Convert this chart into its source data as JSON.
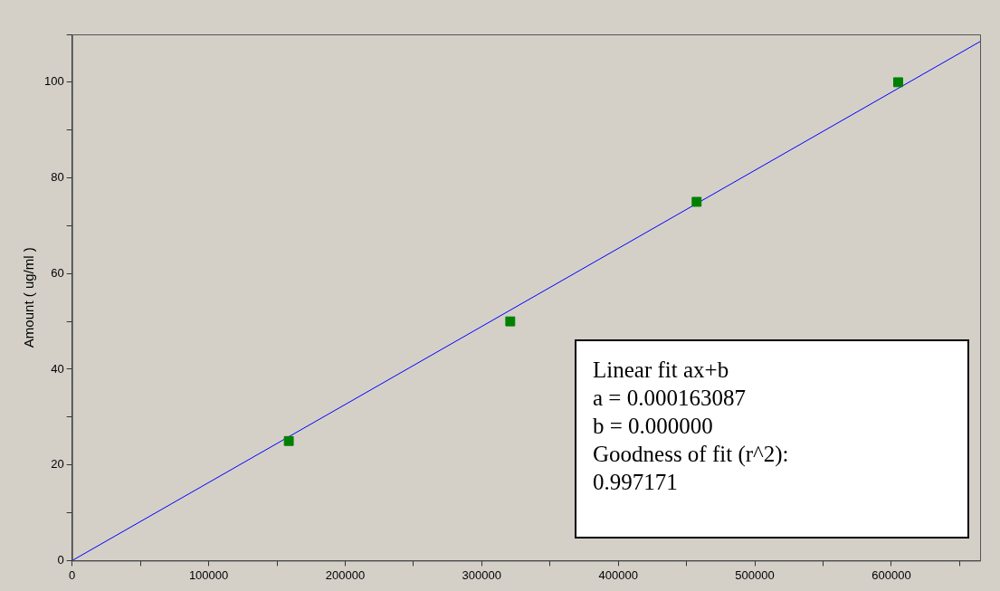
{
  "chart_data": {
    "type": "scatter",
    "ylabel": "Amount ( ug/ml )",
    "x": [
      158700,
      320900,
      457400,
      605000
    ],
    "series": [
      {
        "type": "scatter",
        "color": "#008000",
        "marker": "square",
        "values": [
          25,
          50,
          75,
          100
        ]
      },
      {
        "type": "line",
        "color": "#0000ff",
        "marker": "none",
        "x": [
          0,
          665000
        ],
        "values": [
          0,
          108.5
        ]
      }
    ],
    "xlim": [
      0,
      665000
    ],
    "ylim": [
      0,
      110
    ],
    "xticks": [
      0,
      {
        "value": 50000,
        "label": null
      },
      100000,
      {
        "value": 150000,
        "label": null
      },
      200000,
      {
        "value": 250000,
        "label": null
      },
      300000,
      {
        "value": 350000,
        "label": null
      },
      400000,
      {
        "value": 450000,
        "label": null
      },
      500000,
      {
        "value": 550000,
        "label": null
      },
      600000,
      {
        "value": 650000,
        "label": null
      }
    ],
    "yticks": [
      0,
      {
        "value": 10,
        "label": null
      },
      20,
      {
        "value": 30,
        "label": null
      },
      40,
      {
        "value": 50,
        "label": null
      },
      60,
      {
        "value": 70,
        "label": null
      },
      80,
      {
        "value": 90,
        "label": null
      },
      100,
      {
        "value": 110,
        "label": null
      }
    ],
    "annotations": [
      "Linear fit ax+b",
      "a = 0.000163087",
      "b = 0.000000",
      "Goodness of fit (r^2):",
      "0.997171"
    ]
  }
}
